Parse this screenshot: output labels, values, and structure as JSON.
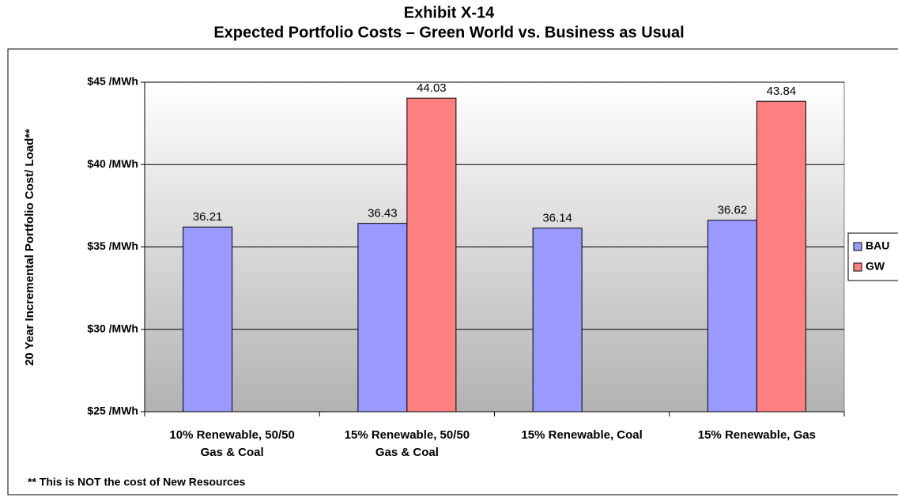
{
  "chart_data": {
    "type": "bar",
    "title": "Exhibit X-14",
    "subtitle": "Expected Portfolio Costs – Green World vs. Business as Usual",
    "y_label": "20 Year Incremental Portfolio Cost/ Load**",
    "note": "** This is NOT the cost of New Resources",
    "categories": [
      "10% Renewable, 50/50 Gas & Coal",
      "15% Renewable, 50/50 Gas & Coal",
      "15% Renewable, Coal",
      "15% Renewable, Gas"
    ],
    "series": [
      {
        "name": "BAU",
        "color": "#9999ff",
        "values": [
          36.21,
          36.43,
          36.14,
          36.62
        ]
      },
      {
        "name": "GW",
        "color": "#ff8080",
        "values": [
          null,
          44.03,
          null,
          43.84
        ]
      }
    ],
    "ylim": [
      25,
      45
    ],
    "yticks": [
      {
        "value": 25,
        "label": "$25 /MWh"
      },
      {
        "value": 30,
        "label": "$30 /MWh"
      },
      {
        "value": 35,
        "label": "$35 /MWh"
      },
      {
        "value": 40,
        "label": "$40 /MWh"
      },
      {
        "value": 45,
        "label": "$45 /MWh"
      }
    ],
    "grid": true,
    "legend": "right"
  }
}
